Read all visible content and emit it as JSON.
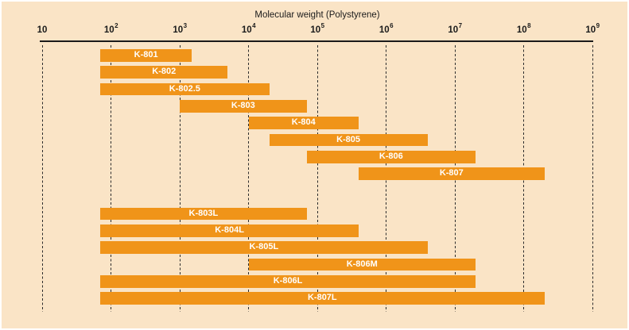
{
  "colors": {
    "background": "#FAE4C6",
    "frame": "#FFFFFF",
    "bar": "#F09419",
    "bar_label": "#FFFFFF",
    "axis_text": "#1A1A1A",
    "gridline": "#2D2D2D"
  },
  "chart_data": {
    "type": "bar",
    "variant": "horizontal-range",
    "title": "Molecular weight (Polystyrene)",
    "xlabel": "Molecular weight (Polystyrene)",
    "x_scale": "log10",
    "xlim": [
      10,
      1000000000
    ],
    "grid": "vertical-dashed",
    "legend": "none",
    "ticks": [
      {
        "exponent": 1,
        "label": "10"
      },
      {
        "exponent": 2,
        "label": "10²"
      },
      {
        "exponent": 3,
        "label": "10³"
      },
      {
        "exponent": 4,
        "label": "10⁴"
      },
      {
        "exponent": 5,
        "label": "10⁵"
      },
      {
        "exponent": 6,
        "label": "10⁶"
      },
      {
        "exponent": 7,
        "label": "10⁷"
      },
      {
        "exponent": 8,
        "label": "10⁸"
      },
      {
        "exponent": 9,
        "label": "10⁹"
      }
    ],
    "bars": [
      {
        "label": "K-801",
        "min_mw": 70,
        "max_mw": 1500,
        "group": "standard"
      },
      {
        "label": "K-802",
        "min_mw": 70,
        "max_mw": 5000,
        "group": "standard"
      },
      {
        "label": "K-802.5",
        "min_mw": 70,
        "max_mw": 20000,
        "group": "standard"
      },
      {
        "label": "K-803",
        "min_mw": 1000,
        "max_mw": 70000,
        "group": "standard"
      },
      {
        "label": "K-804",
        "min_mw": 10000,
        "max_mw": 400000,
        "group": "standard"
      },
      {
        "label": "K-805",
        "min_mw": 20000,
        "max_mw": 4000000,
        "group": "standard"
      },
      {
        "label": "K-806",
        "min_mw": 70000,
        "max_mw": 20000000,
        "group": "standard"
      },
      {
        "label": "K-807",
        "min_mw": 400000,
        "max_mw": 200000000,
        "group": "standard"
      },
      {
        "label": "K-803L",
        "min_mw": 70,
        "max_mw": 70000,
        "group": "linear"
      },
      {
        "label": "K-804L",
        "min_mw": 70,
        "max_mw": 400000,
        "group": "linear"
      },
      {
        "label": "K-805L",
        "min_mw": 70,
        "max_mw": 4000000,
        "group": "linear"
      },
      {
        "label": "K-806M",
        "min_mw": 10000,
        "max_mw": 20000000,
        "group": "linear"
      },
      {
        "label": "K-806L",
        "min_mw": 70,
        "max_mw": 20000000,
        "group": "linear"
      },
      {
        "label": "K-807L",
        "min_mw": 70,
        "max_mw": 200000000,
        "group": "linear"
      }
    ]
  }
}
